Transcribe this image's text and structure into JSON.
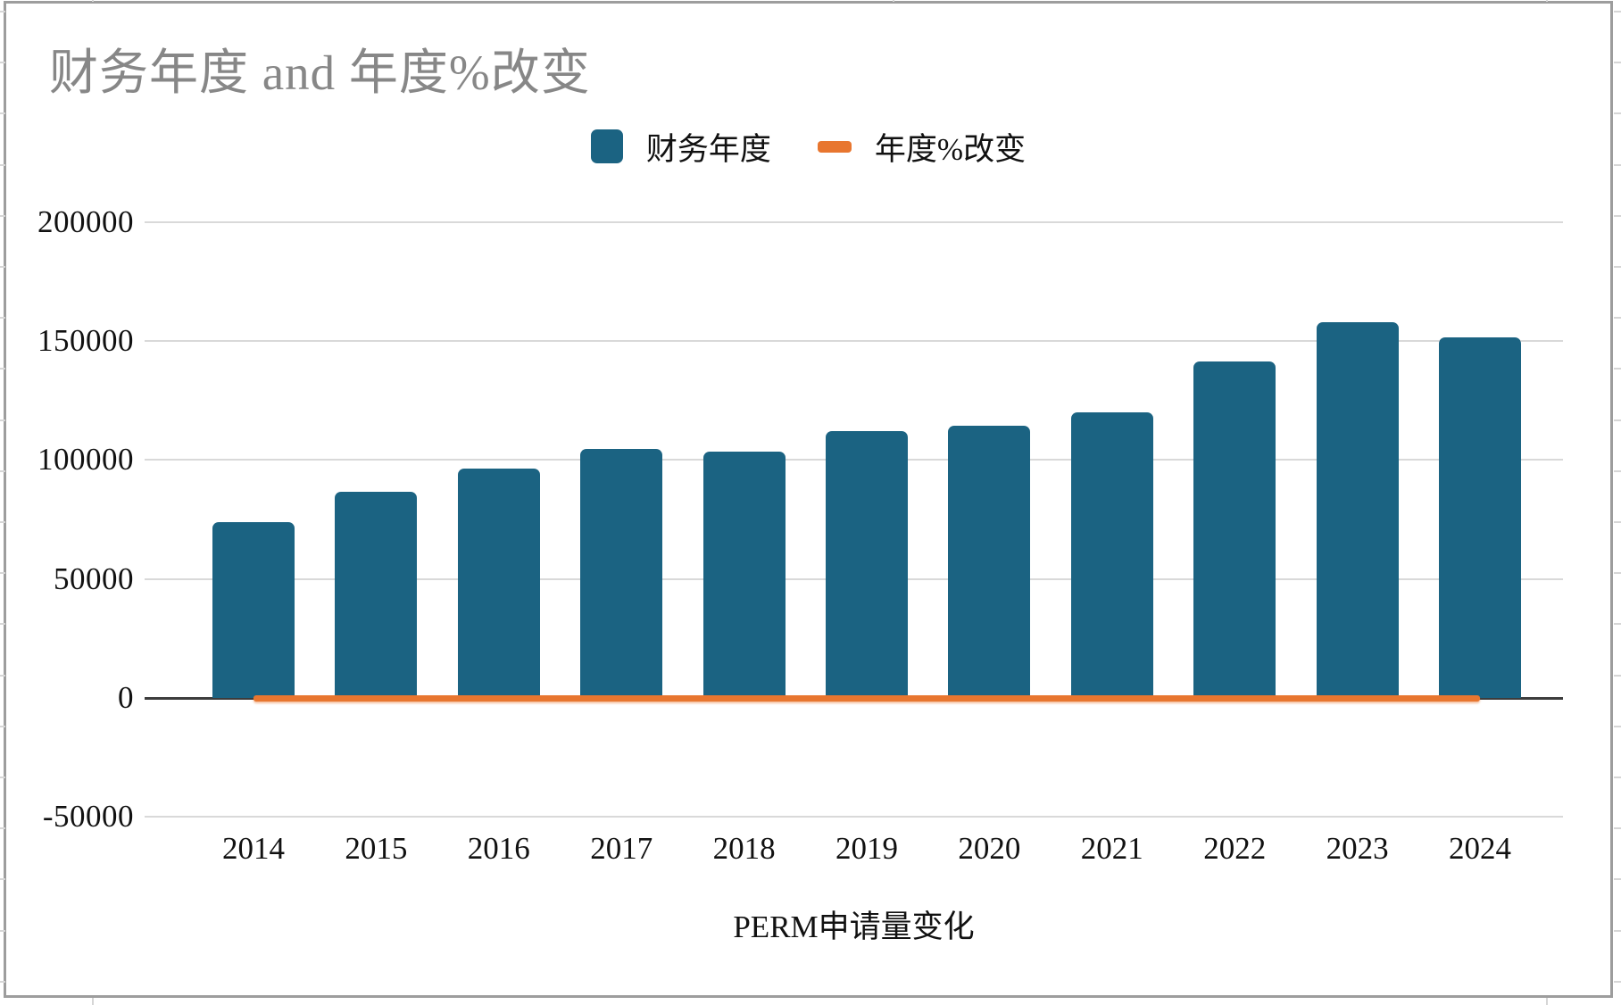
{
  "chart": {
    "title": "财务年度 and 年度%改变",
    "axis_title_bottom": "PERM申请量变化",
    "legend": {
      "position": "top-center",
      "items": [
        {
          "label": "财务年度",
          "swatch": "square",
          "color": "#1b6382"
        },
        {
          "label": "年度%改变",
          "swatch": "dash",
          "color": "#e8762f"
        }
      ]
    },
    "colors": {
      "bar": "#1b6382",
      "line": "#e8762f",
      "title_text": "#878787",
      "axis_text": "#111111",
      "gridline": "#d9d9d9",
      "zero_axis": "#3c3c3c",
      "card_border": "#9d9d9d"
    }
  },
  "chart_data": {
    "type": "bar",
    "title": "财务年度 and 年度%改变",
    "xlabel": "PERM申请量变化",
    "ylabel": "",
    "ylim": [
      -50000,
      200000
    ],
    "yticks": [
      200000,
      150000,
      100000,
      50000,
      0,
      -50000
    ],
    "grid": true,
    "legend_position": "top",
    "categories": [
      "2014",
      "2015",
      "2016",
      "2017",
      "2018",
      "2019",
      "2020",
      "2021",
      "2022",
      "2023",
      "2024"
    ],
    "series": [
      {
        "name": "财务年度",
        "type": "bar",
        "color": "#1b6382",
        "values": [
          74000,
          86500,
          96500,
          104500,
          103500,
          112000,
          114500,
          120000,
          141500,
          158000,
          151500
        ]
      },
      {
        "name": "年度%改变",
        "type": "line",
        "color": "#e8762f",
        "axis_note": "plotted on same value axis, renders flat at ~0",
        "values": [
          0,
          17,
          12,
          8,
          -1,
          8,
          2,
          5,
          18,
          12,
          -4
        ]
      }
    ]
  }
}
